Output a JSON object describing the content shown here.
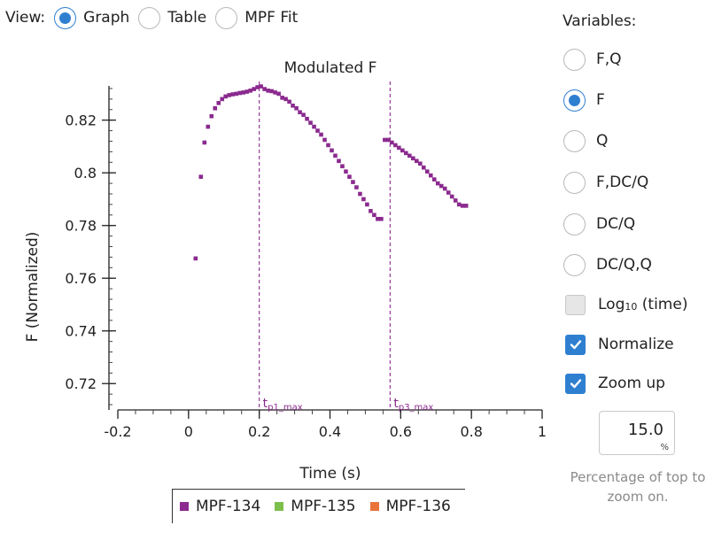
{
  "view": {
    "label": "View:",
    "options": [
      {
        "label": "Graph",
        "selected": true
      },
      {
        "label": "Table",
        "selected": false
      },
      {
        "label": "MPF Fit",
        "selected": false
      }
    ]
  },
  "variables": {
    "title": "Variables:",
    "options": [
      {
        "label": "F,Q",
        "selected": false
      },
      {
        "label": "F",
        "selected": true
      },
      {
        "label": "Q",
        "selected": false
      },
      {
        "label": "F,DC/Q",
        "selected": false
      },
      {
        "label": "DC/Q",
        "selected": false
      },
      {
        "label": "DC/Q,Q",
        "selected": false
      }
    ]
  },
  "checkboxes": {
    "log_time": {
      "label_main": "Log",
      "label_sub": "10",
      "label_rest": " (time)",
      "checked": false
    },
    "normalize": {
      "label": "Normalize",
      "checked": true
    },
    "zoom_up": {
      "label": "Zoom up",
      "checked": true
    }
  },
  "zoom": {
    "value": "15.0",
    "unit": "%",
    "help": "Percentage of top to zoom on."
  },
  "colors": {
    "accent": "#2f7fd1",
    "mpf134": "#8b2a8f",
    "mpf135": "#7cbf4a",
    "mpf136": "#e8743b"
  },
  "chart_data": {
    "type": "scatter",
    "title": "Modulated F",
    "xlabel": "Time (s)",
    "ylabel": "F (Normalized)",
    "xlim": [
      -0.2,
      1.0
    ],
    "ylim": [
      0.71,
      0.833
    ],
    "x_ticks": [
      -0.2,
      0,
      0.2,
      0.4,
      0.6,
      0.8,
      1
    ],
    "x_tick_labels": [
      "-0.2",
      "0",
      "0.2",
      "0.4",
      "0.6",
      "0.8",
      "1"
    ],
    "y_ticks": [
      0.72,
      0.74,
      0.76,
      0.78,
      0.8,
      0.82
    ],
    "y_tick_labels": [
      "0.72",
      "0.74",
      "0.76",
      "0.78",
      "0.8",
      "0.82"
    ],
    "grid": false,
    "vlines": [
      {
        "x": 0.2,
        "label_main": "t",
        "label_sub": "p1_max"
      },
      {
        "x": 0.57,
        "label_main": "t",
        "label_sub": "p3_max"
      }
    ],
    "legend_items": [
      "MPF-134",
      "MPF-135",
      "MPF-136"
    ],
    "series": [
      {
        "name": "MPF-134",
        "color": "#8b2a8f",
        "x": [
          0.02,
          0.035,
          0.045,
          0.055,
          0.065,
          0.075,
          0.085,
          0.095,
          0.105,
          0.115,
          0.125,
          0.135,
          0.145,
          0.155,
          0.165,
          0.175,
          0.185,
          0.195,
          0.205,
          0.215,
          0.225,
          0.235,
          0.245,
          0.255,
          0.265,
          0.275,
          0.285,
          0.295,
          0.305,
          0.315,
          0.325,
          0.335,
          0.345,
          0.355,
          0.365,
          0.375,
          0.385,
          0.395,
          0.405,
          0.415,
          0.425,
          0.435,
          0.445,
          0.455,
          0.465,
          0.475,
          0.485,
          0.495,
          0.505,
          0.515,
          0.525,
          0.535,
          0.545,
          0.555,
          0.565,
          0.575,
          0.585,
          0.595,
          0.605,
          0.615,
          0.625,
          0.635,
          0.645,
          0.655,
          0.665,
          0.675,
          0.685,
          0.695,
          0.705,
          0.715,
          0.725,
          0.735,
          0.745,
          0.755,
          0.765,
          0.775,
          0.785
        ],
        "y": [
          0.7675,
          0.7985,
          0.8115,
          0.8175,
          0.8215,
          0.8245,
          0.8265,
          0.828,
          0.829,
          0.8295,
          0.8298,
          0.83,
          0.8303,
          0.8305,
          0.8308,
          0.8312,
          0.8318,
          0.8325,
          0.8328,
          0.8318,
          0.8312,
          0.831,
          0.8305,
          0.83,
          0.8285,
          0.828,
          0.827,
          0.8255,
          0.8245,
          0.823,
          0.822,
          0.8205,
          0.819,
          0.8175,
          0.816,
          0.8145,
          0.8125,
          0.8105,
          0.8085,
          0.8065,
          0.8045,
          0.8025,
          0.8005,
          0.7985,
          0.7965,
          0.7945,
          0.792,
          0.79,
          0.788,
          0.7855,
          0.784,
          0.7825,
          0.7825,
          0.8125,
          0.8125,
          0.8115,
          0.8105,
          0.8095,
          0.8085,
          0.8075,
          0.8065,
          0.8055,
          0.8045,
          0.8035,
          0.802,
          0.8005,
          0.799,
          0.7975,
          0.796,
          0.795,
          0.794,
          0.7925,
          0.791,
          0.7895,
          0.788,
          0.7875,
          0.7875
        ]
      }
    ]
  }
}
